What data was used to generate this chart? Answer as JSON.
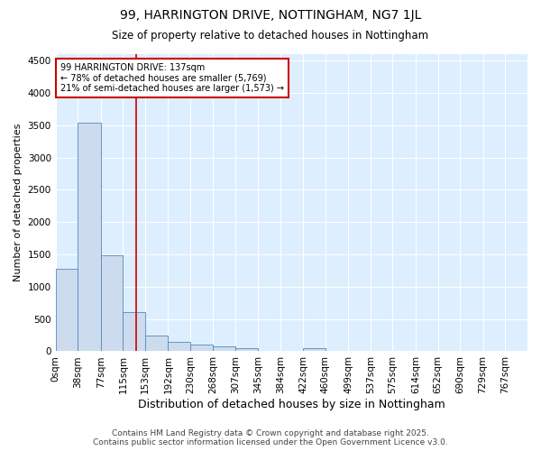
{
  "title": "99, HARRINGTON DRIVE, NOTTINGHAM, NG7 1JL",
  "subtitle": "Size of property relative to detached houses in Nottingham",
  "xlabel": "Distribution of detached houses by size in Nottingham",
  "ylabel": "Number of detached properties",
  "bar_color": "#ccdcee",
  "bar_edge_color": "#5588bb",
  "background_color": "#ddeeff",
  "grid_color": "#ffffff",
  "fig_background_color": "#ffffff",
  "annotation_line_color": "#cc0000",
  "annotation_box_edgecolor": "#cc0000",
  "annotation_text": "99 HARRINGTON DRIVE: 137sqm\n← 78% of detached houses are smaller (5,769)\n21% of semi-detached houses are larger (1,573) →",
  "property_size": 137,
  "bin_edges": [
    0,
    38,
    77,
    115,
    153,
    192,
    230,
    268,
    307,
    345,
    384,
    422,
    460,
    499,
    537,
    575,
    614,
    652,
    690,
    729,
    767,
    805
  ],
  "bin_labels": [
    "0sqm",
    "38sqm",
    "77sqm",
    "115sqm",
    "153sqm",
    "192sqm",
    "230sqm",
    "268sqm",
    "307sqm",
    "345sqm",
    "384sqm",
    "422sqm",
    "460sqm",
    "499sqm",
    "537sqm",
    "575sqm",
    "614sqm",
    "652sqm",
    "690sqm",
    "729sqm",
    "767sqm"
  ],
  "bar_heights": [
    1280,
    3540,
    1490,
    600,
    240,
    150,
    100,
    70,
    50,
    0,
    0,
    50,
    0,
    0,
    0,
    0,
    0,
    0,
    0,
    0,
    0
  ],
  "ylim": [
    0,
    4600
  ],
  "yticks": [
    0,
    500,
    1000,
    1500,
    2000,
    2500,
    3000,
    3500,
    4000,
    4500
  ],
  "title_fontsize": 10,
  "subtitle_fontsize": 8.5,
  "ylabel_fontsize": 8,
  "xlabel_fontsize": 9,
  "tick_fontsize": 7.5,
  "annotation_fontsize": 7,
  "footer_fontsize": 6.5,
  "footer_text": "Contains HM Land Registry data © Crown copyright and database right 2025.\nContains public sector information licensed under the Open Government Licence v3.0."
}
